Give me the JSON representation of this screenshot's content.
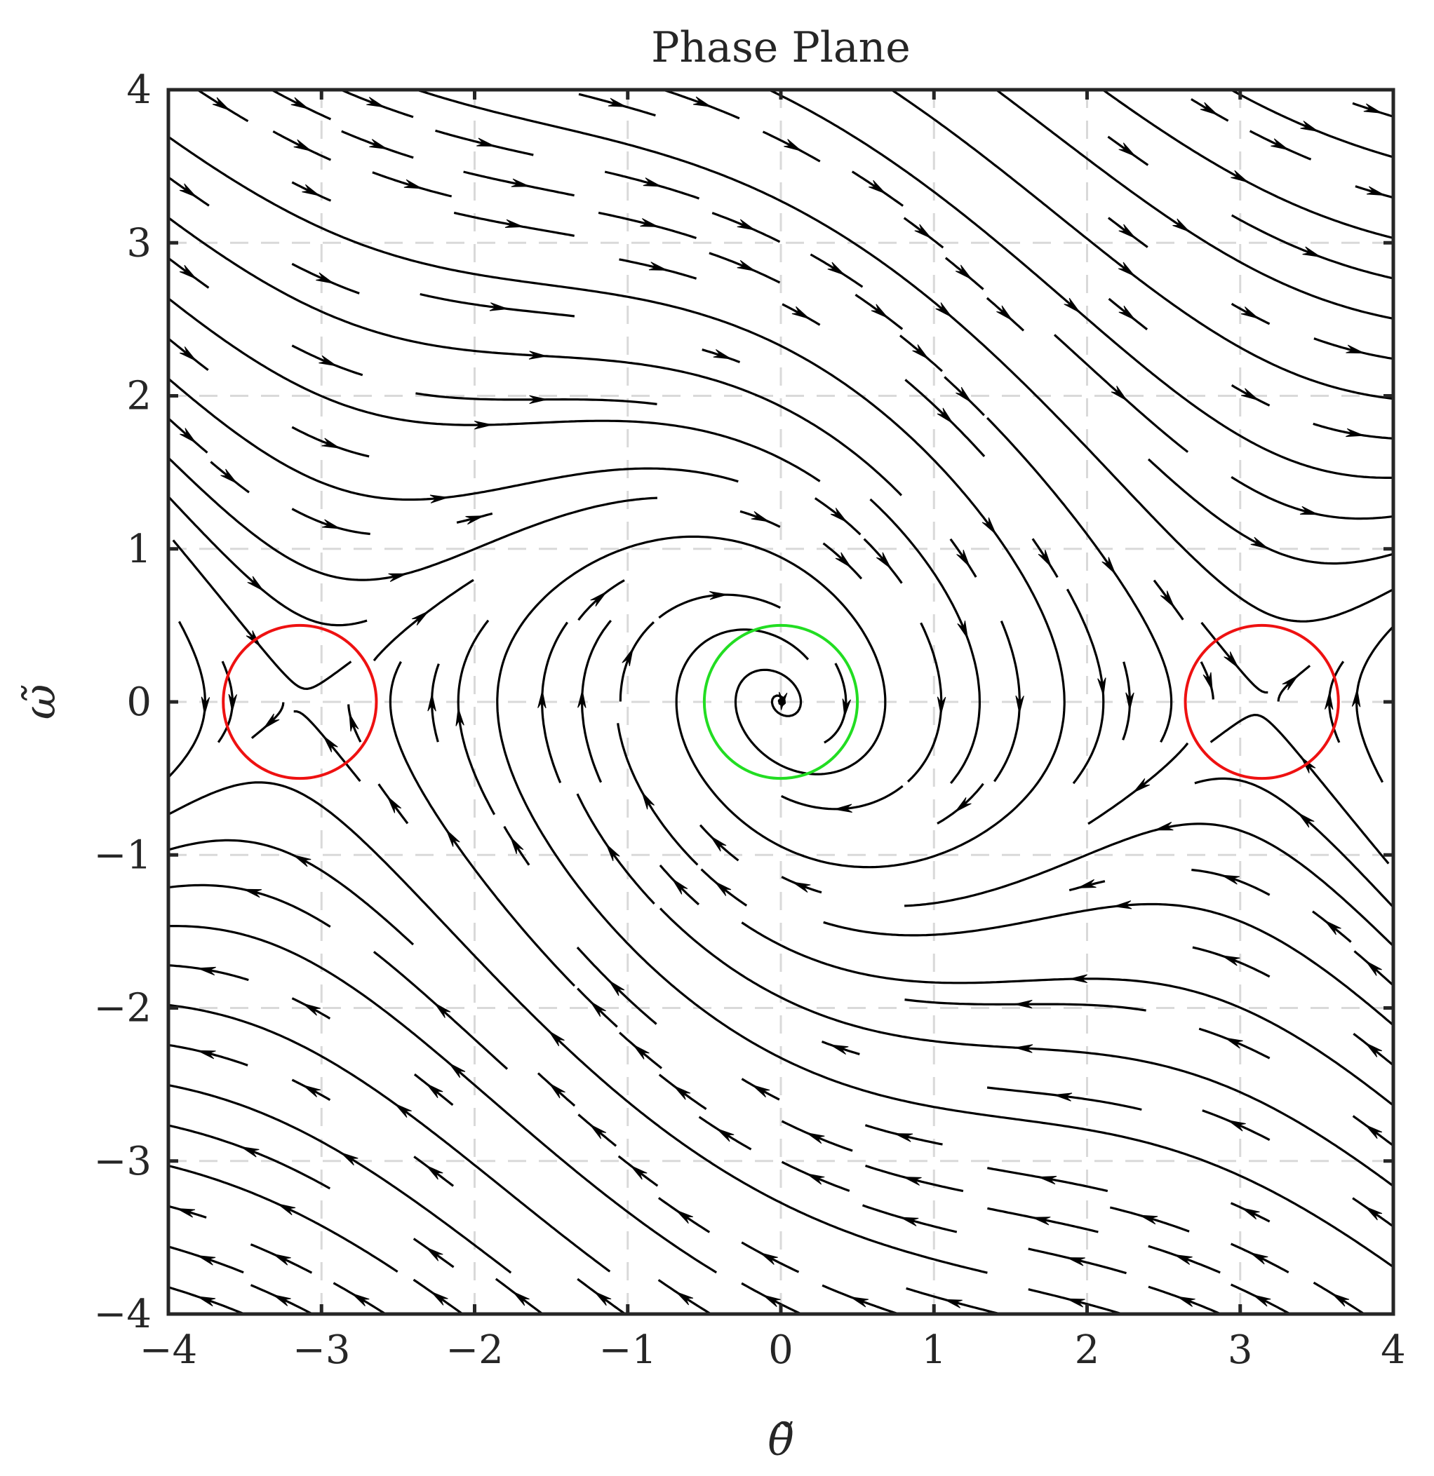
{
  "chart_data": {
    "type": "streamplot",
    "title": "Phase Plane",
    "xlabel": "θ̃",
    "ylabel": "ω̃",
    "xlim": [
      -4,
      4
    ],
    "ylim": [
      -4,
      4
    ],
    "xticks": [
      -4,
      -3,
      -2,
      -1,
      0,
      1,
      2,
      3,
      4
    ],
    "yticks": [
      -4,
      -3,
      -2,
      -1,
      0,
      1,
      2,
      3,
      4
    ],
    "xtick_labels": [
      "−4",
      "−3",
      "−2",
      "−1",
      "0",
      "1",
      "2",
      "3",
      "4"
    ],
    "ytick_labels": [
      "−4",
      "−3",
      "−2",
      "−1",
      "0",
      "1",
      "2",
      "3",
      "4"
    ],
    "grid": true,
    "grid_style": "dashed",
    "field": {
      "theta_dot": "omega",
      "omega_dot": "-sin(theta) - 0.5*omega"
    },
    "markers": [
      {
        "kind": "circle",
        "center": [
          0,
          0
        ],
        "radius": 0.5,
        "color": "#22dd22"
      },
      {
        "kind": "circle",
        "center": [
          -3.1416,
          0
        ],
        "radius": 0.5,
        "color": "#ee1111"
      },
      {
        "kind": "circle",
        "center": [
          3.1416,
          0
        ],
        "radius": 0.5,
        "color": "#ee1111"
      }
    ],
    "colors": {
      "streamline": "#000000",
      "axes": "#262626",
      "grid": "#d9d9d9",
      "background": "#ffffff"
    }
  }
}
